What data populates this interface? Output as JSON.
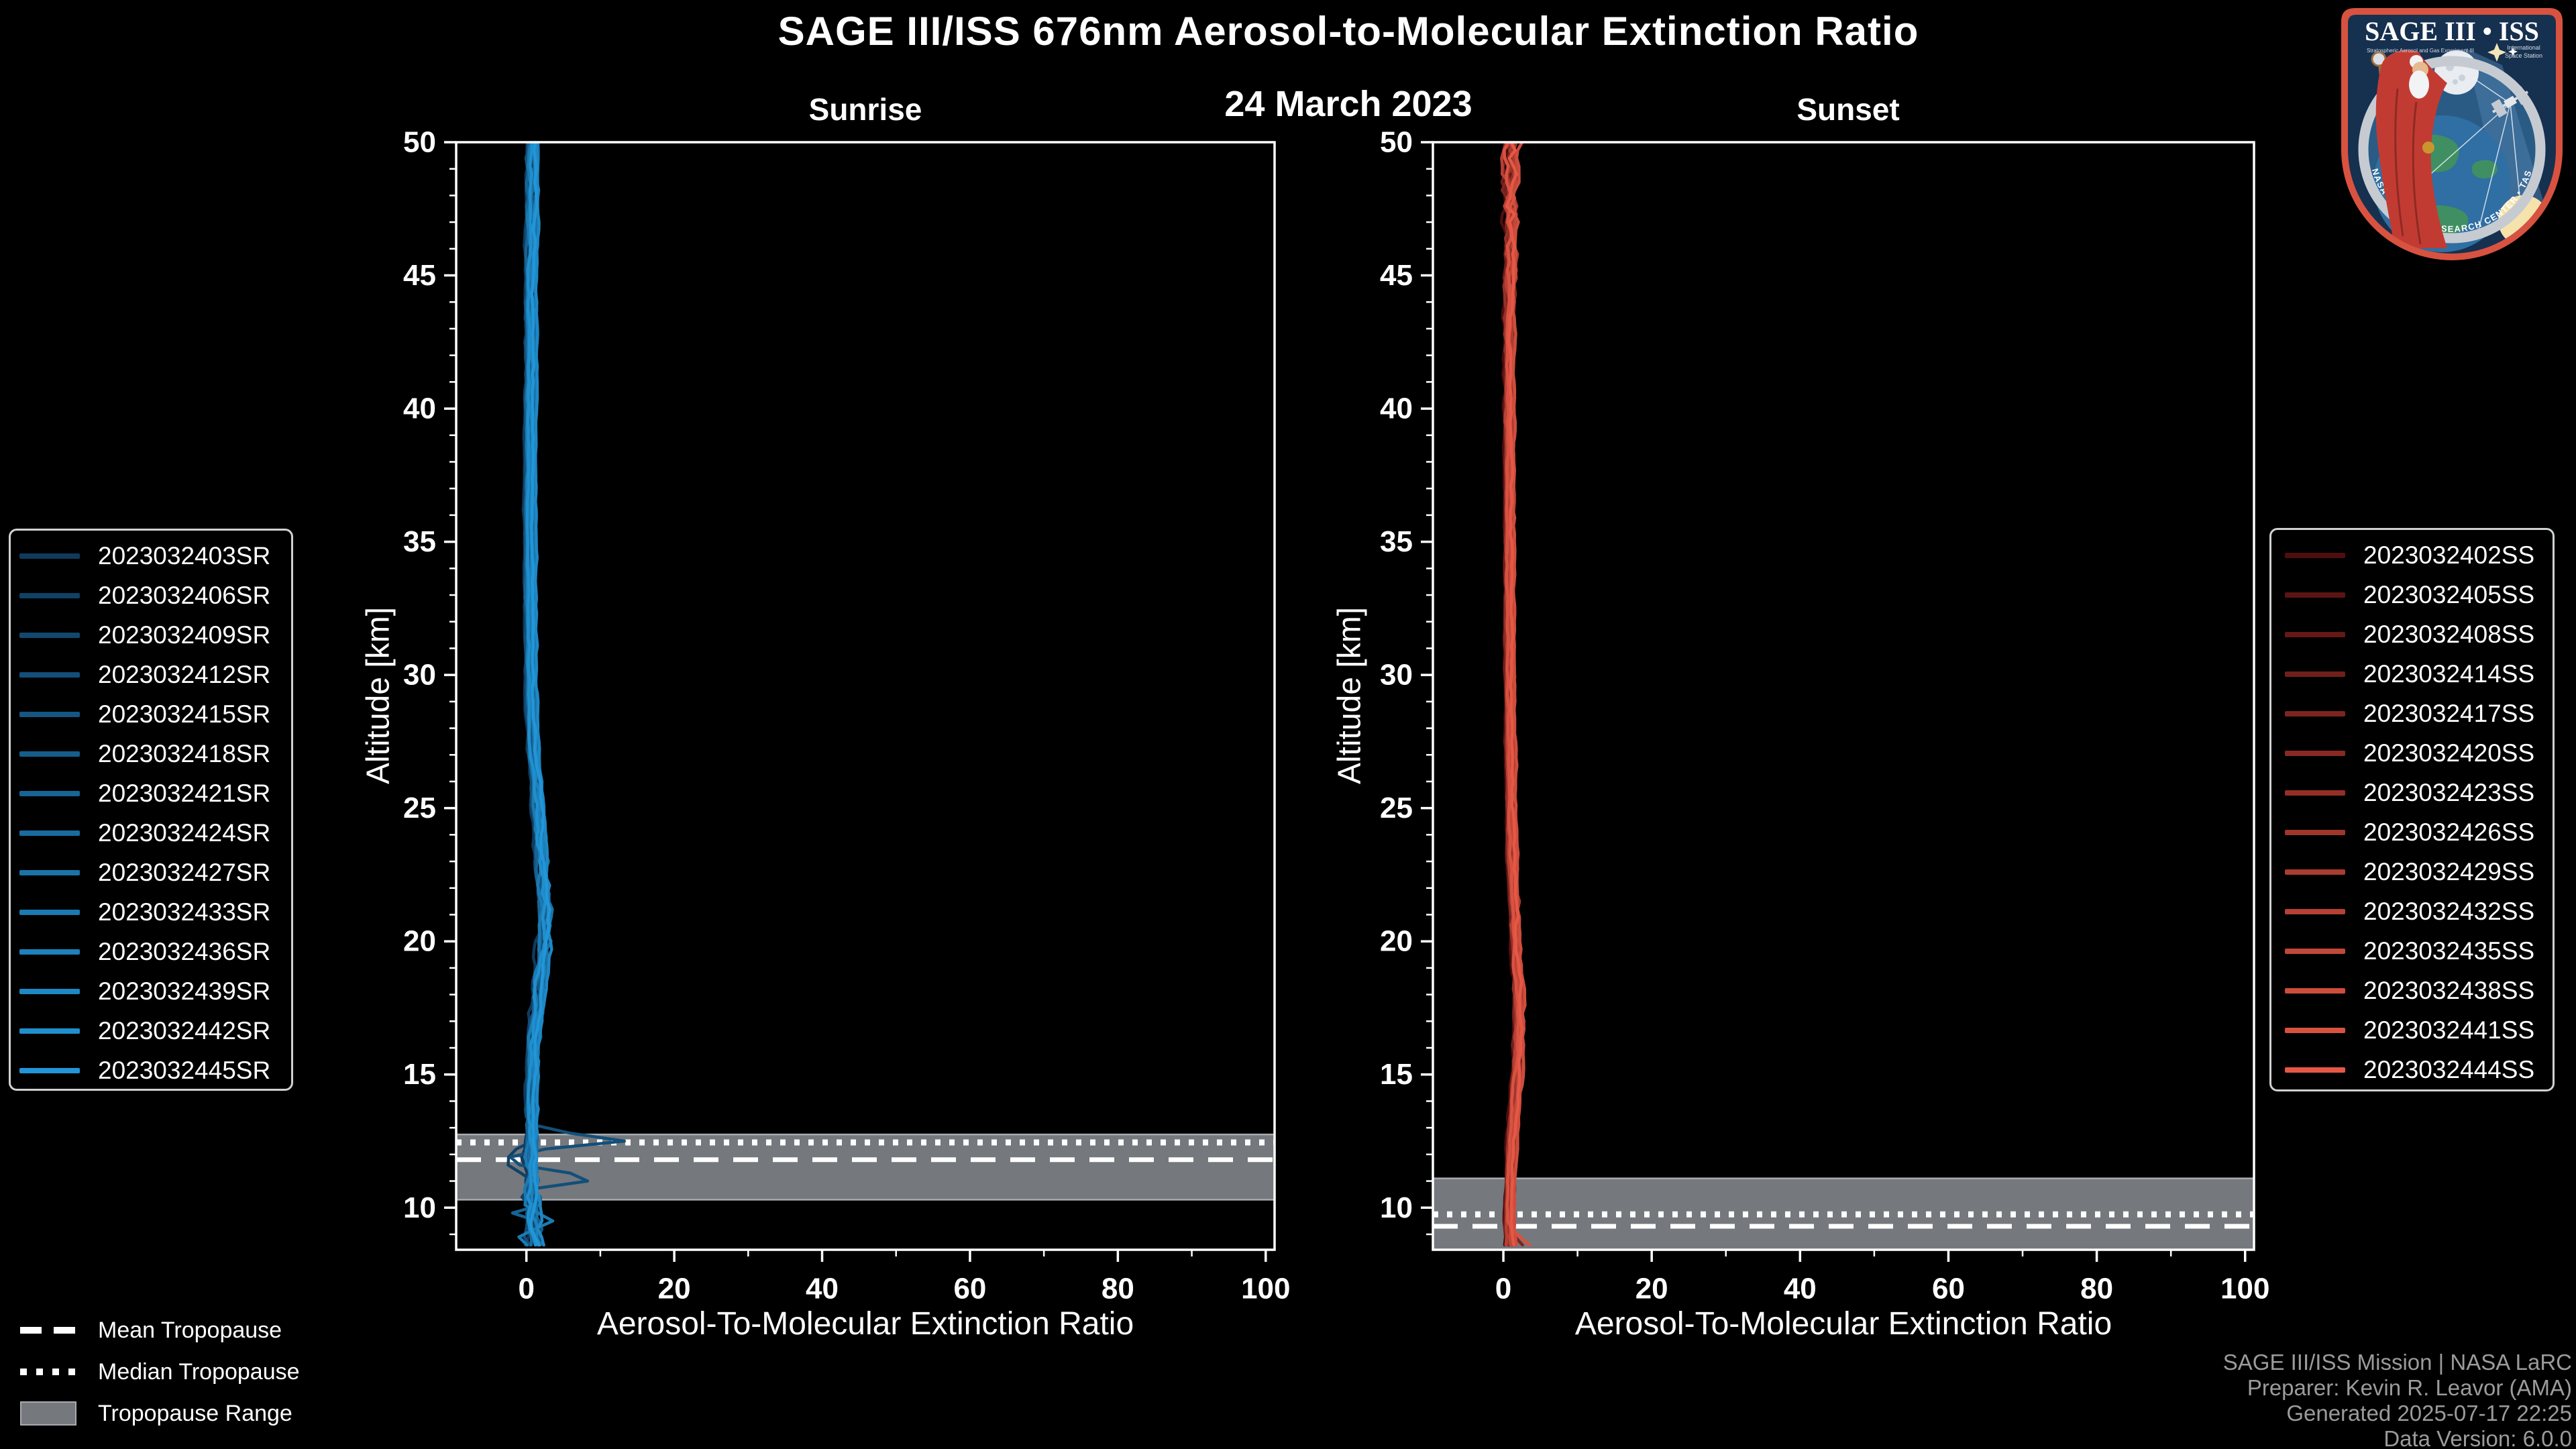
{
  "chart_data": {
    "type": "line",
    "title": "SAGE III/ISS 676nm Aerosol-to-Molecular Extinction Ratio",
    "subtitle": "24 March 2023",
    "xlabel": "Aerosol-To-Molecular Extinction Ratio",
    "ylabel": "Altitude [km]",
    "xlim": [
      -9.5,
      101.2
    ],
    "ylim": [
      8.42,
      50
    ],
    "x_ticks": [
      0,
      20,
      40,
      60,
      80,
      100
    ],
    "y_ticks": [
      50,
      45,
      40,
      35,
      30,
      25,
      20,
      15,
      10
    ],
    "x_minor_step": 10,
    "y_minor_step": 1,
    "grid": false,
    "legend_position": "outside-left-and-right",
    "plot_bg": "#000000",
    "axis_color": "#ffffff",
    "tropopause_band_color": "#75787d",
    "tropopause_band_edge": "#a7abaf",
    "tropopause_line_color": "#ffffff",
    "panels": [
      {
        "id": "sunrise",
        "title": "Sunrise",
        "event_type": "SR",
        "color_ramp": [
          "#0F3A5C",
          "#2196D8"
        ],
        "series": [
          "2023032403SR",
          "2023032406SR",
          "2023032409SR",
          "2023032412SR",
          "2023032415SR",
          "2023032418SR",
          "2023032421SR",
          "2023032424SR",
          "2023032427SR",
          "2023032433SR",
          "2023032436SR",
          "2023032439SR",
          "2023032442SR",
          "2023032445SR"
        ],
        "tropopause": {
          "mean_km": 11.8,
          "median_km": 12.45,
          "range_km": [
            10.3,
            12.75
          ]
        },
        "profile_shape": {
          "bias_step": 0.12,
          "points": [
            [
              50,
              0.9,
              0.6
            ],
            [
              48,
              0.8,
              0.6
            ],
            [
              46,
              0.7,
              0.5
            ],
            [
              43,
              0.6,
              0.4
            ],
            [
              40,
              0.55,
              0.3
            ],
            [
              36,
              0.5,
              0.25
            ],
            [
              32,
              0.55,
              0.28
            ],
            [
              29,
              0.65,
              0.32
            ],
            [
              27,
              0.95,
              0.4
            ],
            [
              25,
              1.6,
              0.55
            ],
            [
              23,
              2.1,
              0.75
            ],
            [
              21.5,
              2.4,
              0.85
            ],
            [
              20.5,
              2.6,
              0.95
            ],
            [
              19.5,
              2.3,
              0.95
            ],
            [
              18.5,
              1.9,
              0.85
            ],
            [
              17.5,
              1.5,
              0.7
            ],
            [
              16.5,
              1.05,
              0.55
            ],
            [
              15.5,
              0.85,
              0.45
            ],
            [
              14.5,
              0.75,
              0.45
            ],
            [
              13.5,
              0.7,
              0.5
            ],
            [
              12.8,
              0.8,
              0.65
            ],
            [
              12.2,
              0.65,
              0.85
            ],
            [
              11.5,
              0.55,
              1.0
            ],
            [
              10.8,
              0.6,
              1.1
            ],
            [
              10.2,
              0.8,
              1.2
            ],
            [
              9.6,
              0.9,
              1.3
            ],
            [
              9.0,
              1.0,
              1.3
            ],
            [
              8.42,
              1.2,
              1.2
            ]
          ],
          "features": [
            {
              "series_index": 3,
              "points": [
                [
                  13.2,
                  0.6
                ],
                [
                  12.9,
                  2.2
                ],
                [
                  12.55,
                  15.2
                ],
                [
                  12.25,
                  3.5
                ],
                [
                  12.0,
                  -1.5
                ],
                [
                  11.75,
                  -3.4
                ],
                [
                  11.45,
                  1.8
                ],
                [
                  11.1,
                  11.6
                ],
                [
                  10.8,
                  1.5
                ],
                [
                  10.5,
                  -0.6
                ],
                [
                  10.2,
                  0.8
                ]
              ]
            },
            {
              "series_index": 1,
              "points": [
                [
                  12.5,
                  0.3
                ],
                [
                  12.1,
                  -2.0
                ],
                [
                  11.7,
                  -3.1
                ],
                [
                  11.3,
                  -0.9
                ],
                [
                  10.9,
                  1.4
                ],
                [
                  10.5,
                  -1.2
                ],
                [
                  10.1,
                  0.5
                ]
              ]
            },
            {
              "series_index": 6,
              "points": [
                [
                  10.6,
                  0.6
                ],
                [
                  10.2,
                  3.1
                ],
                [
                  9.8,
                  -1.9
                ],
                [
                  9.4,
                  2.7
                ],
                [
                  9.0,
                  0.4
                ],
                [
                  8.6,
                  2.2
                ]
              ]
            },
            {
              "series_index": 9,
              "points": [
                [
                  9.9,
                  0.8
                ],
                [
                  9.5,
                  3.6
                ],
                [
                  9.15,
                  0.9
                ],
                [
                  8.8,
                  -1.6
                ],
                [
                  8.5,
                  1.0
                ]
              ]
            }
          ]
        }
      },
      {
        "id": "sunset",
        "title": "Sunset",
        "event_type": "SS",
        "color_ramp": [
          "#4E0E0E",
          "#E55845"
        ],
        "series": [
          "2023032402SS",
          "2023032405SS",
          "2023032408SS",
          "2023032414SS",
          "2023032417SS",
          "2023032420SS",
          "2023032423SS",
          "2023032426SS",
          "2023032429SS",
          "2023032432SS",
          "2023032435SS",
          "2023032438SS",
          "2023032441SS",
          "2023032444SS"
        ],
        "tropopause": {
          "mean_km": 9.3,
          "median_km": 9.75,
          "range_km": [
            8.42,
            11.1
          ]
        },
        "profile_shape": {
          "bias_step": 0.1,
          "points": [
            [
              50,
              1.2,
              1.5
            ],
            [
              48.5,
              1.0,
              1.8
            ],
            [
              47,
              1.0,
              1.5
            ],
            [
              45.5,
              0.9,
              1.1
            ],
            [
              44,
              0.85,
              0.75
            ],
            [
              42,
              0.8,
              0.5
            ],
            [
              40,
              0.8,
              0.4
            ],
            [
              36,
              0.8,
              0.3
            ],
            [
              32,
              0.8,
              0.3
            ],
            [
              28,
              0.9,
              0.3
            ],
            [
              25,
              1.05,
              0.35
            ],
            [
              22,
              1.35,
              0.45
            ],
            [
              20,
              1.65,
              0.5
            ],
            [
              18.5,
              1.95,
              0.52
            ],
            [
              17,
              2.15,
              0.52
            ],
            [
              15.5,
              1.95,
              0.48
            ],
            [
              14,
              1.55,
              0.42
            ],
            [
              12.5,
              1.15,
              0.32
            ],
            [
              11,
              0.9,
              0.26
            ],
            [
              10,
              0.82,
              0.22
            ],
            [
              9.2,
              0.8,
              0.26
            ],
            [
              8.42,
              1.0,
              0.6
            ]
          ],
          "features": [
            {
              "series_index": 12,
              "points": [
                [
                  9.4,
                  0.8
                ],
                [
                  9.0,
                  1.8
                ],
                [
                  8.7,
                  3.2
                ],
                [
                  8.45,
                  4.2
                ]
              ]
            },
            {
              "series_index": 4,
              "points": [
                [
                  9.1,
                  0.7
                ],
                [
                  8.8,
                  1.9
                ],
                [
                  8.5,
                  3.0
                ]
              ]
            }
          ]
        }
      }
    ]
  },
  "tropopause_legend": {
    "items": [
      {
        "label": "Mean Tropopause",
        "style": "dashed"
      },
      {
        "label": "Median Tropopause",
        "style": "dotted"
      },
      {
        "label": "Tropopause Range",
        "style": "band"
      }
    ]
  },
  "credit": {
    "lines": [
      "SAGE III/ISS Mission | NASA LaRC",
      "Preparer: Kevin R. Leavor (AMA)",
      "Generated 2025-07-17 22:25",
      "Data Version: 6.0.0"
    ],
    "color": "#9b9b9b"
  },
  "logo": {
    "title": "SAGE III • ISS",
    "subtitle_left": "Stratospheric Aerosol and Gas Experiment III",
    "subtitle_right": [
      "International",
      "Space Station"
    ],
    "ring_text": "BALL • NASA LANGLEY RESEARCH CENTER • TAS-I • ESA",
    "colors": {
      "rim": "#D85240",
      "navy": "#16304F",
      "sky": "#2A5B84",
      "ring": "#C6CBD2",
      "earth_ocean": "#2F6FA3",
      "earth_land": "#3F8F63",
      "robe": "#C23B32",
      "sun": "#F6E3AC",
      "moon": "#E9EDF2"
    }
  }
}
